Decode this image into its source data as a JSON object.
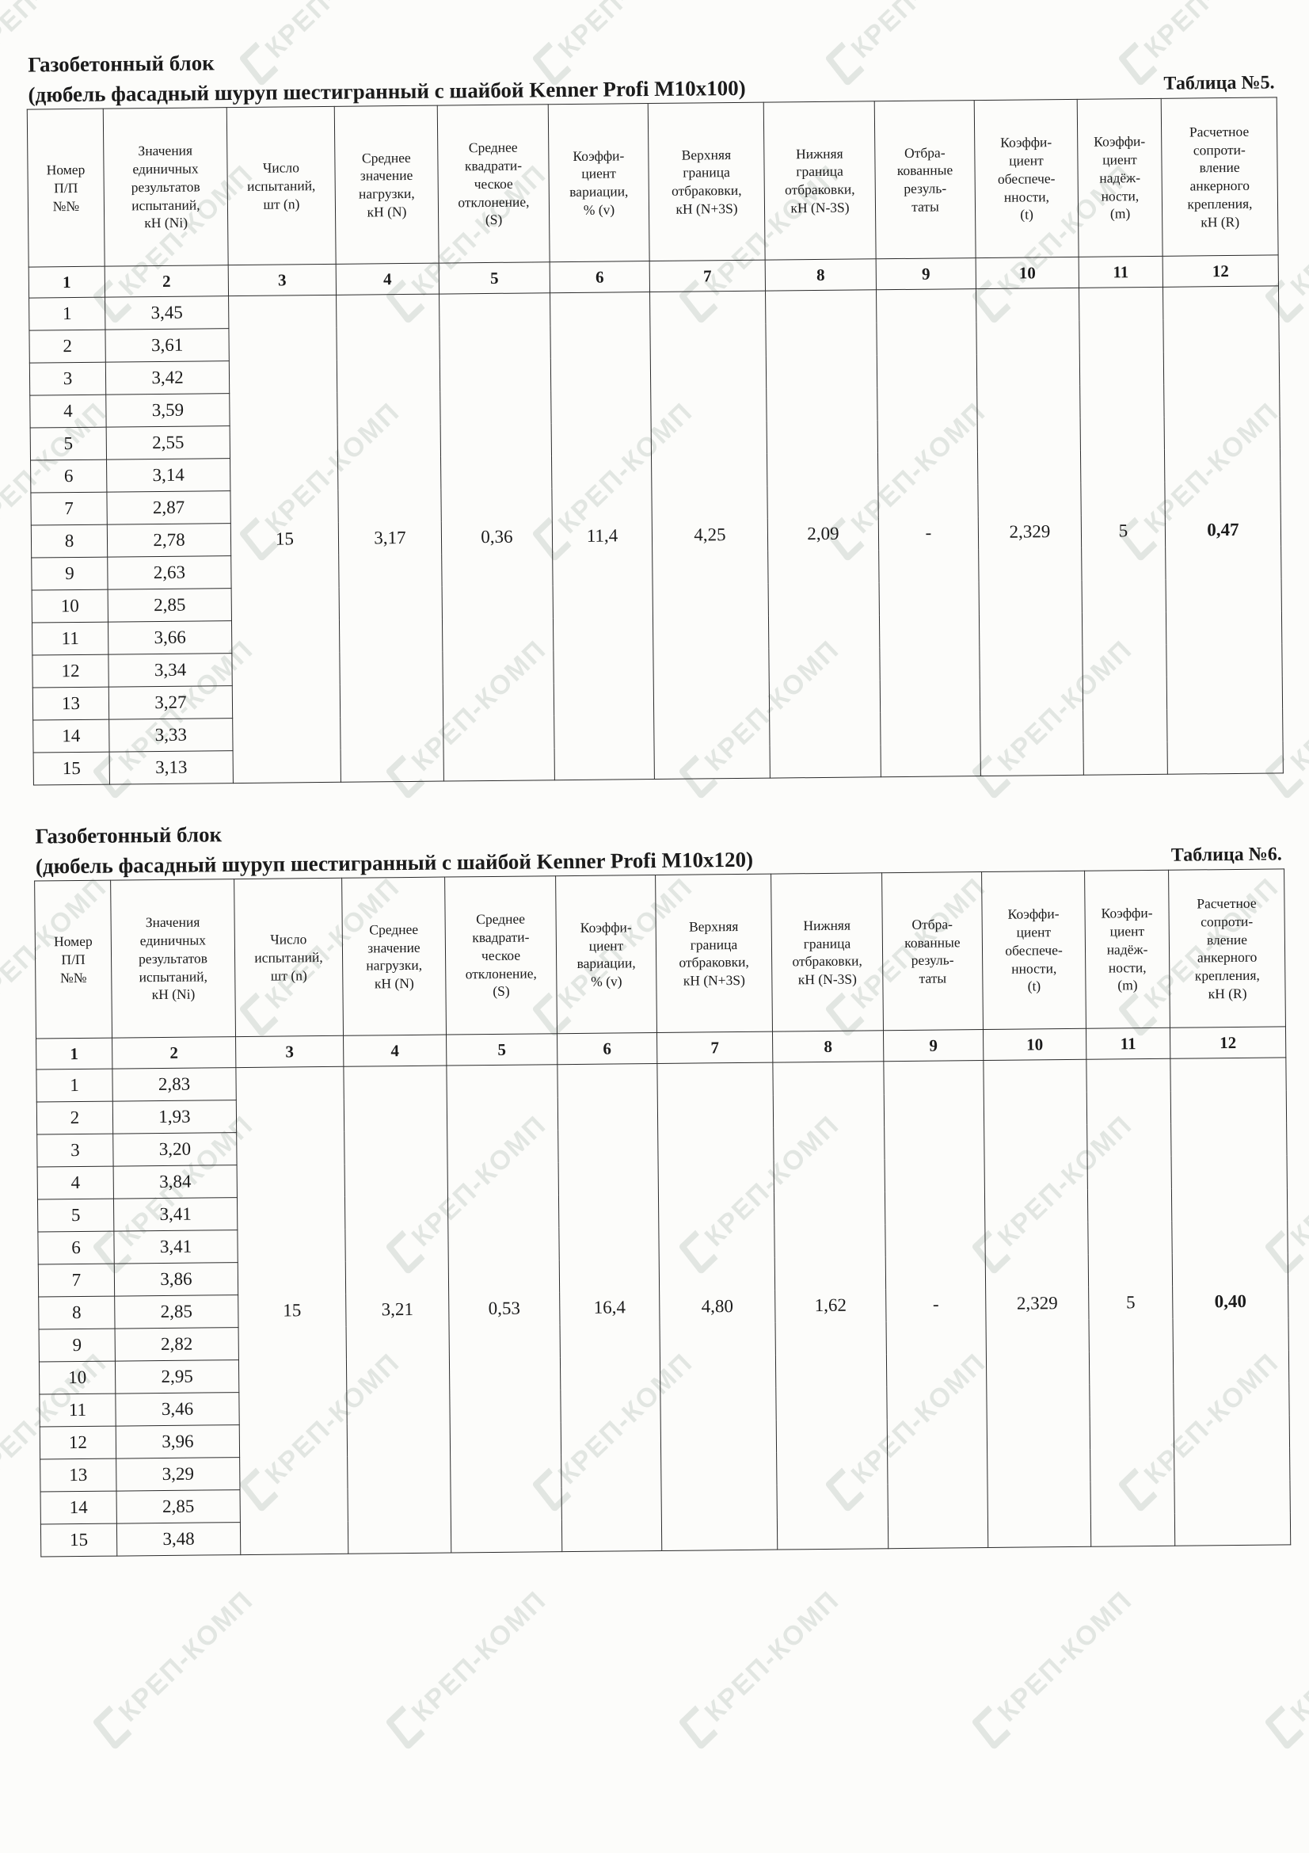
{
  "page": {
    "watermark_text": "КРЕП-КОМП"
  },
  "columns": {
    "headers": [
      "Номер\nП/П\n№№",
      "Значения\nединичных\nрезультатов\nиспытаний,\nкН (Ni)",
      "Число\nиспытаний,\nшт (n)",
      "Среднее\nзначение\nнагрузки,\nкН (N)",
      "Среднее\nквадрати-\nческое\nотклонение,\n(S)",
      "Коэффи-\nциент\nвариации,\n% (v)",
      "Верхняя\nграница\nотбраковки,\nкН (N+3S)",
      "Нижняя\nграница\nотбраковки,\nкН (N-3S)",
      "Отбра-\nкованные\nрезуль-\nтаты",
      "Коэффи-\nциент\nобеспече-\nнности,\n(t)",
      "Коэффи-\nциент\nнадёж-\nности,\n(m)",
      "Расчетное\nсопроти-\nвление\nанкерного\nкрепления,\nкН (R)"
    ],
    "numbers": [
      "1",
      "2",
      "3",
      "4",
      "5",
      "6",
      "7",
      "8",
      "9",
      "10",
      "11",
      "12"
    ]
  },
  "tables": [
    {
      "title_line1": "Газобетонный блок",
      "title_line2": "(дюбель фасадный шуруп шестигранный с шайбой Kenner Profi M10x100)",
      "table_label": "Таблица №5.",
      "rows": [
        {
          "n": "1",
          "value": "3,45"
        },
        {
          "n": "2",
          "value": "3,61"
        },
        {
          "n": "3",
          "value": "3,42"
        },
        {
          "n": "4",
          "value": "3,59"
        },
        {
          "n": "5",
          "value": "2,55"
        },
        {
          "n": "6",
          "value": "3,14"
        },
        {
          "n": "7",
          "value": "2,87"
        },
        {
          "n": "8",
          "value": "2,78"
        },
        {
          "n": "9",
          "value": "2,63"
        },
        {
          "n": "10",
          "value": "2,85"
        },
        {
          "n": "11",
          "value": "3,66"
        },
        {
          "n": "12",
          "value": "3,34"
        },
        {
          "n": "13",
          "value": "3,27"
        },
        {
          "n": "14",
          "value": "3,33"
        },
        {
          "n": "15",
          "value": "3,13"
        }
      ],
      "summary": {
        "count": "15",
        "mean": "3,17",
        "stddev": "0,36",
        "variation": "11,4",
        "upper": "4,25",
        "lower": "2,09",
        "rejected": "-",
        "t": "2,329",
        "m": "5",
        "r": "0,47"
      }
    },
    {
      "title_line1": "Газобетонный блок",
      "title_line2": "(дюбель фасадный шуруп шестигранный с шайбой Kenner Profi M10x120)",
      "table_label": "Таблица №6.",
      "rows": [
        {
          "n": "1",
          "value": "2,83"
        },
        {
          "n": "2",
          "value": "1,93"
        },
        {
          "n": "3",
          "value": "3,20"
        },
        {
          "n": "4",
          "value": "3,84"
        },
        {
          "n": "5",
          "value": "3,41"
        },
        {
          "n": "6",
          "value": "3,41"
        },
        {
          "n": "7",
          "value": "3,86"
        },
        {
          "n": "8",
          "value": "2,85"
        },
        {
          "n": "9",
          "value": "2,82"
        },
        {
          "n": "10",
          "value": "2,95"
        },
        {
          "n": "11",
          "value": "3,46"
        },
        {
          "n": "12",
          "value": "3,96"
        },
        {
          "n": "13",
          "value": "3,29"
        },
        {
          "n": "14",
          "value": "2,85"
        },
        {
          "n": "15",
          "value": "3,48"
        }
      ],
      "summary": {
        "count": "15",
        "mean": "3,21",
        "stddev": "0,53",
        "variation": "16,4",
        "upper": "4,80",
        "lower": "1,62",
        "rejected": "-",
        "t": "2,329",
        "m": "5",
        "r": "0,40"
      }
    }
  ]
}
